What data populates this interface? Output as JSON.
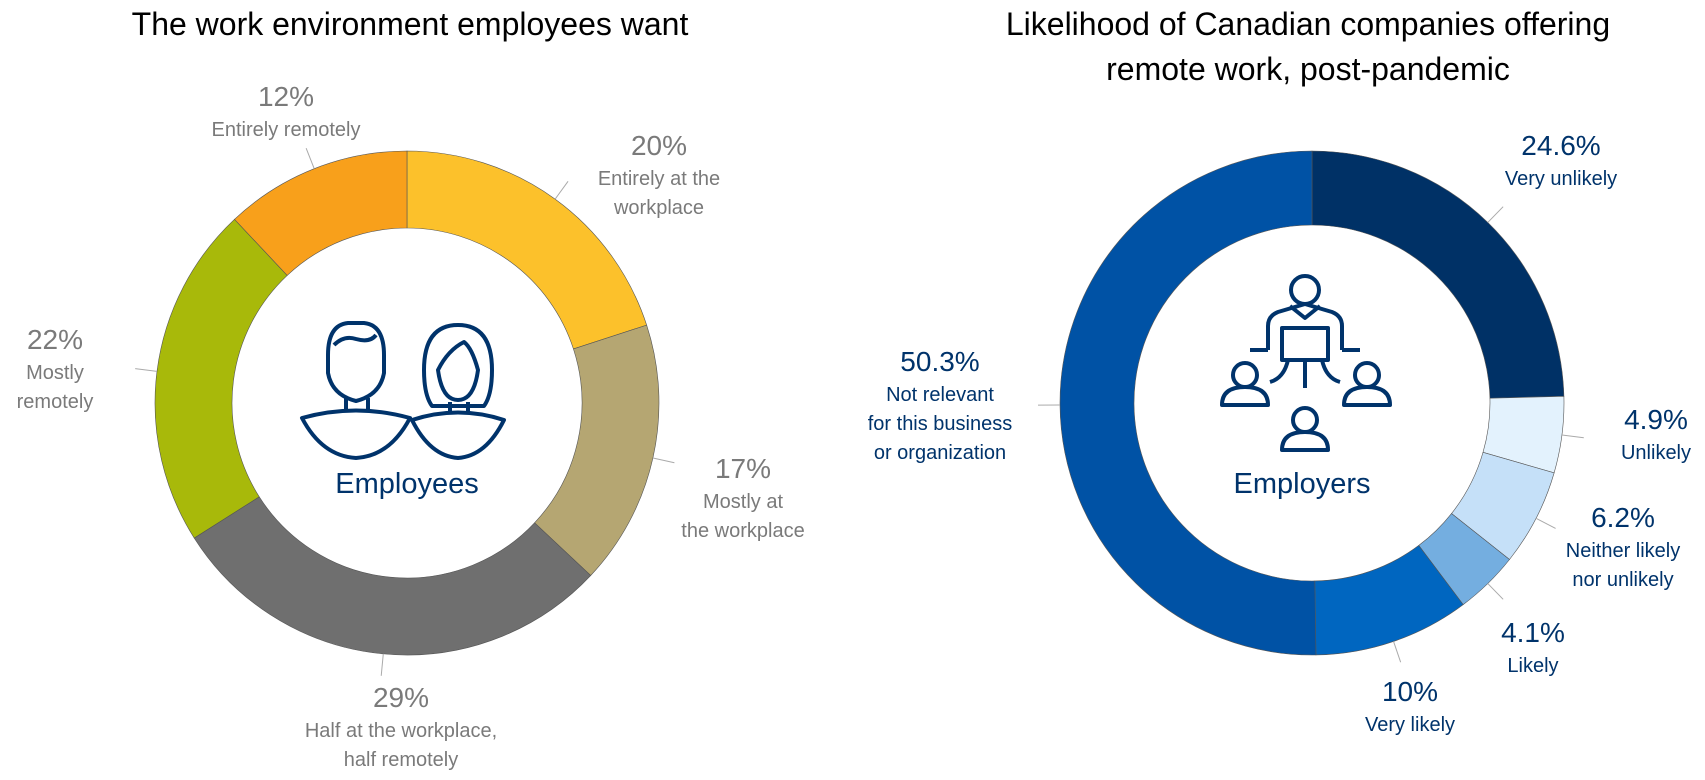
{
  "chart_data": [
    {
      "type": "pie",
      "title": "The work environment employees want",
      "center_label": "Employees",
      "center_icon": "man-and-woman-icon",
      "label_color": "#7a7a7a",
      "slices": [
        {
          "pct_label": "20%",
          "value": 20,
          "label_lines": [
            "Entirely at the",
            "workplace"
          ],
          "color": "#FCC12B"
        },
        {
          "pct_label": "17%",
          "value": 17,
          "label_lines": [
            "Mostly at",
            "the workplace"
          ],
          "color": "#B5A672"
        },
        {
          "pct_label": "29%",
          "value": 29,
          "label_lines": [
            "Half at the workplace,",
            "half remotely"
          ],
          "color": "#6F6F6F"
        },
        {
          "pct_label": "22%",
          "value": 22,
          "label_lines": [
            "Mostly",
            "remotely"
          ],
          "color": "#A8B90A"
        },
        {
          "pct_label": "12%",
          "value": 12,
          "label_lines": [
            "Entirely remotely"
          ],
          "color": "#F8A01B"
        }
      ]
    },
    {
      "type": "pie",
      "title_lines": [
        "Likelihood of Canadian companies offering",
        "remote work, post-pandemic"
      ],
      "center_label": "Employers",
      "center_icon": "team-network-icon",
      "label_color": "#00336b",
      "slices": [
        {
          "pct_label": "24.6%",
          "value": 24.6,
          "label_lines": [
            "Very unlikely"
          ],
          "color": "#003166"
        },
        {
          "pct_label": "4.9%",
          "value": 4.9,
          "label_lines": [
            "Unlikely"
          ],
          "color": "#E3F2FD"
        },
        {
          "pct_label": "6.2%",
          "value": 6.2,
          "label_lines": [
            "Neither likely",
            "nor unlikely"
          ],
          "color": "#C5E0F8"
        },
        {
          "pct_label": "4.1%",
          "value": 4.1,
          "label_lines": [
            "Likely"
          ],
          "color": "#74AEE0"
        },
        {
          "pct_label": "10%",
          "value": 10,
          "label_lines": [
            "Very likely"
          ],
          "color": "#0066C0"
        },
        {
          "pct_label": "50.3%",
          "value": 50.3,
          "label_lines": [
            "Not relevant",
            "for this business",
            "or organization"
          ],
          "color": "#0052A5"
        }
      ]
    }
  ]
}
